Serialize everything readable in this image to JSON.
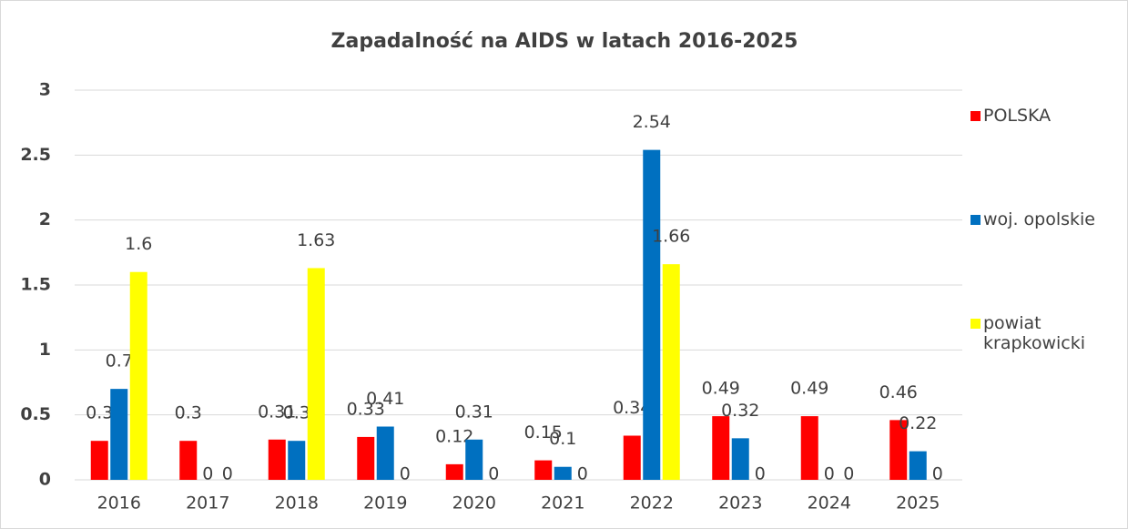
{
  "chart_data": {
    "type": "bar",
    "title": "Zapadalność na AIDS w latach 2016-2025",
    "categories": [
      "2016",
      "2017",
      "2018",
      "2019",
      "2020",
      "2021",
      "2022",
      "2023",
      "2024",
      "2025"
    ],
    "series": [
      {
        "name": "POLSKA",
        "color": "#ff0000",
        "values": [
          0.3,
          0.3,
          0.31,
          0.33,
          0.12,
          0.15,
          0.34,
          0.49,
          0.49,
          0.46
        ]
      },
      {
        "name": "woj. opolskie",
        "color": "#0070c0",
        "values": [
          0.7,
          0,
          0.3,
          0.41,
          0.31,
          0.1,
          2.54,
          0.32,
          0,
          0.22
        ]
      },
      {
        "name": "powiat krapkowicki",
        "color": "#ffff00",
        "values": [
          1.6,
          0,
          1.63,
          0,
          0,
          0,
          1.66,
          0,
          0,
          0
        ]
      }
    ],
    "ylim": [
      0,
      3
    ],
    "yticks": [
      0,
      0.5,
      1,
      1.5,
      2,
      2.5,
      3
    ],
    "grid": true,
    "legend": "right"
  }
}
